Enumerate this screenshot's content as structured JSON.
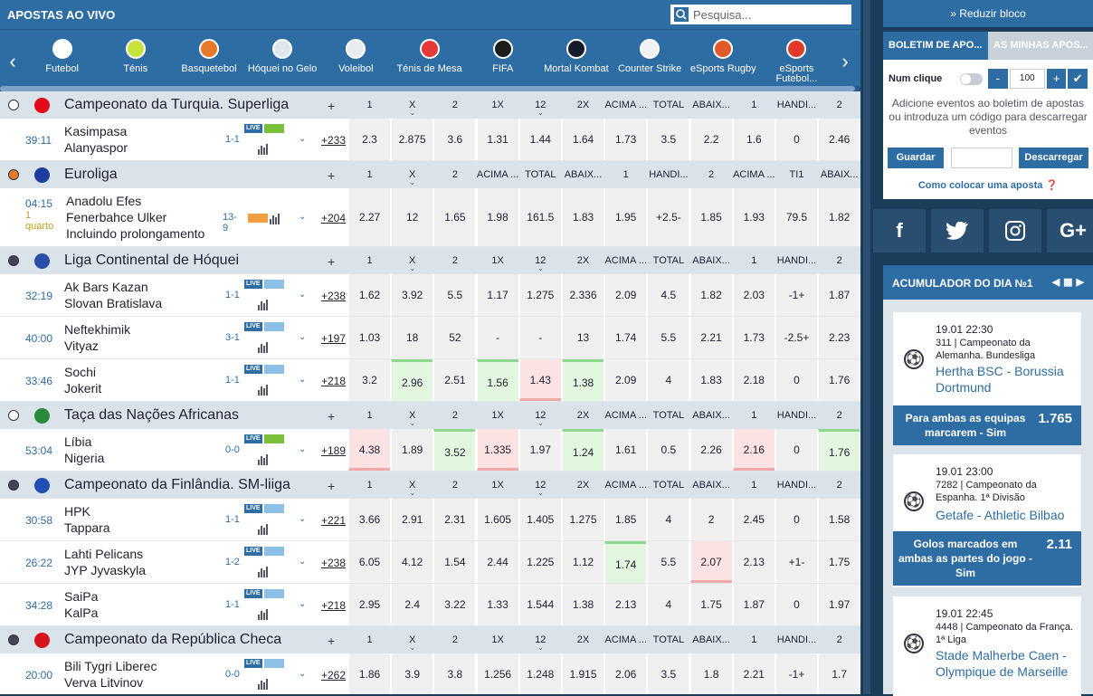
{
  "header": {
    "title": "APOSTAS AO VIVO",
    "search_placeholder": "Pesquisa..."
  },
  "sports": [
    {
      "label": "Futebol",
      "icon": "football-icon",
      "color": "#ffffff"
    },
    {
      "label": "Ténis",
      "icon": "tennis-icon",
      "color": "#c8e23a"
    },
    {
      "label": "Basquetebol",
      "icon": "basketball-icon",
      "color": "#e8792a"
    },
    {
      "label": "Hóquei no Gelo",
      "icon": "hockey-skate-icon",
      "color": "#dfe6ee"
    },
    {
      "label": "Voleibol",
      "icon": "volleyball-icon",
      "color": "#e8edf2"
    },
    {
      "label": "Ténis de Mesa",
      "icon": "table-tennis-icon",
      "color": "#e8393a"
    },
    {
      "label": "FIFA",
      "icon": "fifa-icon",
      "color": "#1d1d1d"
    },
    {
      "label": "Mortal Kombat",
      "icon": "mortal-kombat-icon",
      "color": "#151b2b"
    },
    {
      "label": "Counter Strike",
      "icon": "counter-strike-icon",
      "color": "#f2f2f2"
    },
    {
      "label": "eSports Rugby",
      "icon": "rugby-gamepad-icon",
      "color": "#e05a2a"
    },
    {
      "label": "eSports Futebol...",
      "icon": "football-gamepad-icon",
      "color": "#e03a2a"
    }
  ],
  "leagues": [
    {
      "name": "Campeonato da Turquia. Superliga",
      "sport_icon": "football-icon",
      "flag_color": "#e30a17",
      "plus": "+",
      "columns": [
        "1",
        "X",
        "2",
        "1X",
        "12",
        "2X",
        "ACIMA ...",
        "TOTAL",
        "ABAIX...",
        "1",
        "HANDI...",
        "2"
      ],
      "matches": [
        {
          "time": "39:11",
          "sub": "",
          "teams": [
            "Kasimpasa",
            "Alanyaspor"
          ],
          "score": "1-1",
          "field": "g",
          "more": "+233",
          "odds": [
            "2.3",
            "2.875",
            "3.6",
            "1.31",
            "1.44",
            "1.64",
            "1.73",
            "3.5",
            "2.2",
            "1.6",
            "0",
            "2.46"
          ],
          "trend": [
            "",
            "",
            "",
            "",
            "",
            "",
            "",
            "",
            "",
            "",
            "",
            ""
          ]
        }
      ]
    },
    {
      "name": "Euroliga",
      "sport_icon": "basketball-icon",
      "flag_color": "#1f3fa0",
      "plus": "+",
      "columns": [
        "1",
        "X",
        "2",
        "ACIMA ...",
        "TOTAL",
        "ABAIX...",
        "1",
        "HANDI...",
        "2",
        "ACIMA ...",
        "TI1",
        "ABAIX..."
      ],
      "matches": [
        {
          "time": "04:15",
          "sub": "1 quarto",
          "teams": [
            "Anadolu Efes",
            "Fenerbahce Ulker",
            "Incluindo prolongamento"
          ],
          "score": "13-9",
          "field": "o",
          "more": "+204",
          "odds": [
            "2.27",
            "12",
            "1.65",
            "1.98",
            "161.5",
            "1.83",
            "1.95",
            "+2.5-",
            "1.85",
            "1.93",
            "79.5",
            "1.82"
          ],
          "trend": [
            "",
            "",
            "",
            "",
            "",
            "",
            "",
            "",
            "",
            "",
            "",
            ""
          ]
        }
      ]
    },
    {
      "name": "Liga Continental de Hóquei",
      "sport_icon": "hockey-skate-icon",
      "flag_color": "#2a4fa8",
      "plus": "+",
      "columns": [
        "1",
        "X",
        "2",
        "1X",
        "12",
        "2X",
        "ACIMA ...",
        "TOTAL",
        "ABAIX...",
        "1",
        "HANDI...",
        "2"
      ],
      "matches": [
        {
          "time": "32:19",
          "sub": "",
          "teams": [
            "Ak Bars Kazan",
            "Slovan Bratislava"
          ],
          "score": "1-1",
          "field": "b",
          "more": "+238",
          "odds": [
            "1.62",
            "3.92",
            "5.5",
            "1.17",
            "1.275",
            "2.336",
            "2.09",
            "4.5",
            "1.82",
            "2.03",
            "-1+",
            "1.87"
          ],
          "trend": [
            "",
            "",
            "",
            "",
            "",
            "",
            "",
            "",
            "",
            "",
            "",
            ""
          ]
        },
        {
          "time": "40:00",
          "sub": "",
          "teams": [
            "Neftekhimik",
            "Vityaz"
          ],
          "score": "3-1",
          "field": "b",
          "more": "+197",
          "odds": [
            "1.03",
            "18",
            "52",
            "-",
            "-",
            "13",
            "1.74",
            "5.5",
            "2.21",
            "1.73",
            "-2.5+",
            "2.23"
          ],
          "trend": [
            "",
            "",
            "",
            "",
            "",
            "",
            "",
            "",
            "",
            "",
            "",
            ""
          ]
        },
        {
          "time": "33:46",
          "sub": "",
          "teams": [
            "Sochi",
            "Jokerit"
          ],
          "score": "1-1",
          "field": "b",
          "more": "+218",
          "odds": [
            "3.2",
            "2.96",
            "2.51",
            "1.56",
            "1.43",
            "1.38",
            "2.09",
            "4",
            "1.83",
            "2.18",
            "0",
            "1.76"
          ],
          "trend": [
            "",
            "up",
            "",
            "up",
            "dn",
            "up",
            "",
            "",
            "",
            "",
            "",
            ""
          ]
        }
      ]
    },
    {
      "name": "Taça das Nações Africanas",
      "sport_icon": "football-icon",
      "flag_color": "#2a8a3a",
      "plus": "+",
      "columns": [
        "1",
        "X",
        "2",
        "1X",
        "12",
        "2X",
        "ACIMA ...",
        "TOTAL",
        "ABAIX...",
        "1",
        "HANDI...",
        "2"
      ],
      "matches": [
        {
          "time": "53:04",
          "sub": "",
          "teams": [
            "Líbia",
            "Nigeria"
          ],
          "score": "0-0",
          "field": "g",
          "more": "+189",
          "odds": [
            "4.38",
            "1.89",
            "3.52",
            "1.335",
            "1.97",
            "1.24",
            "1.61",
            "0.5",
            "2.26",
            "2.16",
            "0",
            "1.76"
          ],
          "trend": [
            "dn",
            "",
            "up",
            "dn",
            "",
            "up",
            "",
            "",
            "",
            "dn",
            "",
            "up"
          ]
        }
      ]
    },
    {
      "name": "Campeonato da Finlândia. SM-liiga",
      "sport_icon": "hockey-skate-icon",
      "flag_color": "#1f4fb5",
      "plus": "+",
      "columns": [
        "1",
        "X",
        "2",
        "1X",
        "12",
        "2X",
        "ACIMA ...",
        "TOTAL",
        "ABAIX...",
        "1",
        "HANDI...",
        "2"
      ],
      "matches": [
        {
          "time": "30:58",
          "sub": "",
          "teams": [
            "HPK",
            "Tappara"
          ],
          "score": "1-1",
          "field": "b",
          "more": "+221",
          "odds": [
            "3.66",
            "2.91",
            "2.31",
            "1.605",
            "1.405",
            "1.275",
            "1.85",
            "4",
            "2",
            "2.45",
            "0",
            "1.58"
          ],
          "trend": [
            "",
            "",
            "",
            "",
            "",
            "",
            "",
            "",
            "",
            "",
            "",
            ""
          ]
        },
        {
          "time": "26:22",
          "sub": "",
          "teams": [
            "Lahti Pelicans",
            "JYP Jyvaskyla"
          ],
          "score": "1-2",
          "field": "b",
          "more": "+238",
          "odds": [
            "6.05",
            "4.12",
            "1.54",
            "2.44",
            "1.225",
            "1.12",
            "1.74",
            "5.5",
            "2.07",
            "2.13",
            "+1-",
            "1.75"
          ],
          "trend": [
            "",
            "",
            "",
            "",
            "",
            "",
            "up",
            "",
            "dn",
            "",
            "",
            ""
          ]
        },
        {
          "time": "34:28",
          "sub": "",
          "teams": [
            "SaiPa",
            "KalPa"
          ],
          "score": "1-1",
          "field": "b",
          "more": "+218",
          "odds": [
            "2.95",
            "2.4",
            "3.22",
            "1.33",
            "1.544",
            "1.38",
            "2.13",
            "4",
            "1.75",
            "1.87",
            "0",
            "1.97"
          ],
          "trend": [
            "",
            "",
            "",
            "",
            "",
            "",
            "",
            "",
            "",
            "",
            "",
            ""
          ]
        }
      ]
    },
    {
      "name": "Campeonato da República Checa",
      "sport_icon": "hockey-skate-icon",
      "flag_color": "#d7141a",
      "plus": "+",
      "columns": [
        "1",
        "X",
        "2",
        "1X",
        "12",
        "2X",
        "ACIMA ...",
        "TOTAL",
        "ABAIX...",
        "1",
        "HANDI...",
        "2"
      ],
      "matches": [
        {
          "time": "20:00",
          "sub": "",
          "teams": [
            "Bili Tygri Liberec",
            "Verva Litvinov"
          ],
          "score": "0-0",
          "field": "b",
          "more": "+262",
          "odds": [
            "1.86",
            "3.9",
            "3.8",
            "1.256",
            "1.248",
            "1.915",
            "2.06",
            "3.5",
            "1.8",
            "2.21",
            "-1+",
            "1.7"
          ],
          "trend": [
            "",
            "",
            "",
            "",
            "",
            "",
            "",
            "",
            "",
            "",
            "",
            ""
          ]
        }
      ]
    }
  ],
  "sidebar": {
    "reduce_label": "Reduzir bloco",
    "tab_betslip": "BOLETIM DE APO...",
    "tab_mybets": "AS MINHAS APOS...",
    "num_click_label": "Num clique",
    "minus": "-",
    "amount": "100",
    "plus": "+",
    "confirm": "✔",
    "betslip_msg": "Adicione eventos ao boletim de apostas ou introduza um código para descarregar eventos",
    "save_label": "Guardar",
    "download_label": "Descarregar",
    "howto_label": "Como colocar uma aposta",
    "social": [
      "f",
      "twitter-icon",
      "instagram-icon",
      "G+"
    ],
    "acc_title": "ACUMULADOR DO DIA №1",
    "cards": [
      {
        "date": "19.01  22:30",
        "league": "311 | Campeonato da Alemanha. Bundesliga",
        "match": "Hertha BSC - Borussia Dortmund",
        "pick": "Para ambas as equipas marcarem - Sim",
        "odd": "1.765"
      },
      {
        "date": "19.01  23:00",
        "league": "7282 | Campeonato da Espanha. 1ª Divisão",
        "match": "Getafe - Athletic Bilbao",
        "pick": "Golos marcados em ambas as partes do jogo - Sim",
        "odd": "2.11"
      },
      {
        "date": "19.01  22:45",
        "league": "4448 | Campeonato da França. 1ª Liga",
        "match": "Stade Malherbe Caen - Olympique de Marseille",
        "pick": "",
        "odd": ""
      }
    ]
  }
}
